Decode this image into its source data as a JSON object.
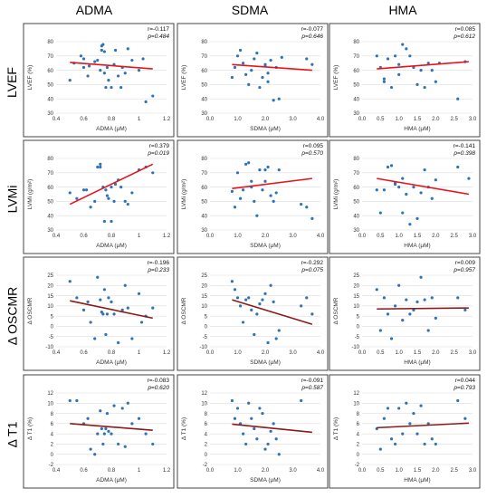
{
  "columns": [
    "ADMA",
    "SDMA",
    "HMA"
  ],
  "rows": [
    "LVEF",
    "LVMi",
    "Δ OSCMR",
    "Δ T1"
  ],
  "chart_data": [
    {
      "type": "scatter",
      "row": "LVEF",
      "col": "ADMA",
      "xlabel": "ADMA (μM)",
      "ylabel": "LVEF (%)",
      "xlim": [
        0.4,
        1.2
      ],
      "ylim": [
        30,
        80
      ],
      "xticks": [
        "0.4",
        "0.6",
        "0.8",
        "1",
        "1.2"
      ],
      "yticks": [
        "30",
        "40",
        "50",
        "60",
        "70",
        "80"
      ],
      "r_text": "r=-0.117",
      "p_text": "p=0.484",
      "trend": [
        [
          0.5,
          65.5
        ],
        [
          1.1,
          61
        ]
      ],
      "trend_color": "#e8141c",
      "x": [
        0.5,
        0.53,
        0.58,
        0.6,
        0.6,
        0.63,
        0.64,
        0.68,
        0.7,
        0.72,
        0.73,
        0.73,
        0.74,
        0.75,
        0.75,
        0.76,
        0.77,
        0.78,
        0.8,
        0.82,
        0.83,
        0.85,
        0.87,
        0.88,
        0.9,
        0.92,
        0.95,
        1.0,
        1.03,
        1.05,
        1.1
      ],
      "y": [
        53,
        65,
        70,
        68,
        62,
        56,
        63,
        66,
        67,
        60,
        74,
        77,
        78,
        73,
        58,
        48,
        62,
        53,
        48,
        64,
        74,
        56,
        48,
        62,
        58,
        75,
        67,
        60,
        68,
        38,
        42
      ]
    },
    {
      "type": "scatter",
      "row": "LVEF",
      "col": "SDMA",
      "xlabel": "SDMA (μM)",
      "ylabel": "LVEF (%)",
      "xlim": [
        0,
        4
      ],
      "ylim": [
        30,
        80
      ],
      "xticks": [
        "0.0",
        "1.0",
        "2.0",
        "3.0",
        "4.0"
      ],
      "yticks": [
        "30",
        "40",
        "50",
        "60",
        "70",
        "80"
      ],
      "r_text": "r=-0.077",
      "p_text": "p=0.646",
      "trend": [
        [
          0.8,
          64
        ],
        [
          3.7,
          60
        ]
      ],
      "trend_color": "#e8141c",
      "x": [
        0.8,
        0.9,
        1.0,
        1.1,
        1.2,
        1.3,
        1.4,
        1.5,
        1.6,
        1.7,
        1.8,
        1.9,
        2.0,
        2.0,
        2.1,
        2.1,
        2.2,
        2.3,
        2.4,
        2.5,
        2.6,
        3.5,
        3.7
      ],
      "y": [
        55,
        62,
        70,
        74,
        65,
        57,
        50,
        60,
        68,
        72,
        48,
        55,
        63,
        64,
        52,
        58,
        67,
        39,
        62,
        40,
        69,
        68,
        64
      ]
    },
    {
      "type": "scatter",
      "row": "LVEF",
      "col": "HMA",
      "xlabel": "HMA (μM)",
      "ylabel": "LVEF (%)",
      "xlim": [
        0,
        3
      ],
      "ylim": [
        30,
        80
      ],
      "xticks": [
        "0.0",
        "0.5",
        "1.0",
        "1.5",
        "2.0",
        "2.5",
        "3.0"
      ],
      "yticks": [
        "30",
        "40",
        "50",
        "60",
        "70",
        "80"
      ],
      "r_text": "r=0.085",
      "p_text": "p=0.612",
      "trend": [
        [
          0.4,
          61
        ],
        [
          2.9,
          66
        ]
      ],
      "trend_color": "#e8141c",
      "x": [
        0.4,
        0.5,
        0.6,
        0.6,
        0.7,
        0.8,
        0.9,
        1.0,
        1.0,
        1.1,
        1.2,
        1.3,
        1.4,
        1.5,
        1.6,
        1.7,
        1.8,
        1.9,
        2.0,
        2.1,
        2.6,
        2.8
      ],
      "y": [
        70,
        62,
        54,
        52,
        68,
        48,
        70,
        64,
        57,
        78,
        75,
        70,
        62,
        50,
        60,
        48,
        65,
        60,
        52,
        65,
        40,
        66
      ]
    },
    {
      "type": "scatter",
      "row": "LVMi",
      "col": "ADMA",
      "xlabel": "ADMA (μM)",
      "ylabel": "LVMi (g/m²)",
      "xlim": [
        0.4,
        1.2
      ],
      "ylim": [
        30,
        80
      ],
      "xticks": [
        "0.4",
        "0.6",
        "0.8",
        "1",
        "1.2"
      ],
      "yticks": [
        "30",
        "40",
        "50",
        "60",
        "70",
        "80"
      ],
      "r_text": "r=0.379",
      "p_text": "p=0.019",
      "trend": [
        [
          0.5,
          48
        ],
        [
          1.1,
          76
        ]
      ],
      "trend_color": "#e8141c",
      "x": [
        0.5,
        0.55,
        0.6,
        0.62,
        0.65,
        0.68,
        0.7,
        0.72,
        0.72,
        0.74,
        0.75,
        0.76,
        0.77,
        0.78,
        0.8,
        0.8,
        0.82,
        0.83,
        0.85,
        0.87,
        0.9,
        0.92,
        0.95,
        1.0,
        1.05,
        1.1
      ],
      "y": [
        56,
        52,
        58,
        58,
        46,
        50,
        74,
        76,
        74,
        60,
        36,
        58,
        54,
        52,
        36,
        60,
        50,
        62,
        65,
        60,
        50,
        48,
        56,
        72,
        74,
        70
      ]
    },
    {
      "type": "scatter",
      "row": "LVMi",
      "col": "SDMA",
      "xlabel": "SDMA (μM)",
      "ylabel": "LVMi (g/m²)",
      "xlim": [
        0,
        4
      ],
      "ylim": [
        30,
        80
      ],
      "xticks": [
        "0.0",
        "1.0",
        "2.0",
        "3.0",
        "4.0"
      ],
      "yticks": [
        "30",
        "40",
        "50",
        "60",
        "70",
        "80"
      ],
      "r_text": "r=0.095",
      "p_text": "p=0.570",
      "trend": [
        [
          0.8,
          59
        ],
        [
          3.7,
          66
        ]
      ],
      "trend_color": "#e8141c",
      "x": [
        0.8,
        0.9,
        1.0,
        1.1,
        1.2,
        1.3,
        1.4,
        1.5,
        1.5,
        1.6,
        1.7,
        1.8,
        1.9,
        2.0,
        2.0,
        2.1,
        2.2,
        2.3,
        2.4,
        2.5,
        3.3,
        3.5,
        3.7
      ],
      "y": [
        57,
        46,
        70,
        52,
        58,
        76,
        77,
        64,
        60,
        50,
        40,
        72,
        58,
        64,
        72,
        74,
        54,
        50,
        56,
        72,
        48,
        46,
        38
      ]
    },
    {
      "type": "scatter",
      "row": "LVMi",
      "col": "HMA",
      "xlabel": "HMA (μM)",
      "ylabel": "LVMi (g/m²)",
      "xlim": [
        0,
        3
      ],
      "ylim": [
        30,
        80
      ],
      "xticks": [
        "0.0",
        "0.5",
        "1.0",
        "1.5",
        "2.0",
        "2.5",
        "3.0"
      ],
      "yticks": [
        "30",
        "40",
        "50",
        "60",
        "70",
        "80"
      ],
      "r_text": "r=-0.141",
      "p_text": "p=0.398",
      "trend": [
        [
          0.4,
          66
        ],
        [
          2.9,
          55
        ]
      ],
      "trend_color": "#e8141c",
      "x": [
        0.4,
        0.5,
        0.6,
        0.7,
        0.8,
        0.9,
        0.9,
        1.0,
        1.1,
        1.1,
        1.2,
        1.3,
        1.4,
        1.5,
        1.6,
        1.7,
        1.8,
        1.9,
        2.0,
        2.6,
        2.9
      ],
      "y": [
        58,
        42,
        58,
        74,
        75,
        63,
        62,
        60,
        42,
        66,
        55,
        34,
        60,
        38,
        56,
        72,
        60,
        52,
        65,
        74,
        66
      ]
    },
    {
      "type": "scatter",
      "row": "Δ OSCMR",
      "col": "ADMA",
      "xlabel": "ADMA (μM)",
      "ylabel": "Δ OSCMR",
      "xlim": [
        0.4,
        1.2
      ],
      "ylim": [
        -10,
        25
      ],
      "xticks": [
        "0.4",
        "0.6",
        "0.8",
        "1",
        "1.2"
      ],
      "yticks": [
        "-10",
        "-5",
        "0",
        "5",
        "10",
        "15",
        "20",
        "25"
      ],
      "r_text": "r=-0.196",
      "p_text": "p=0.233",
      "trend": [
        [
          0.5,
          12.5
        ],
        [
          1.1,
          4
        ]
      ],
      "trend_color": "#8b1a1a",
      "x": [
        0.5,
        0.55,
        0.6,
        0.63,
        0.65,
        0.68,
        0.7,
        0.72,
        0.73,
        0.74,
        0.75,
        0.76,
        0.77,
        0.78,
        0.8,
        0.82,
        0.85,
        0.88,
        0.9,
        0.92,
        0.95,
        1.0,
        1.02,
        1.05,
        1.1
      ],
      "y": [
        22,
        14,
        8,
        12,
        2,
        -6,
        24,
        13,
        7,
        6,
        18,
        -4,
        6,
        14,
        12,
        6,
        -8,
        8,
        20,
        9,
        -6,
        16,
        2,
        5,
        9
      ]
    },
    {
      "type": "scatter",
      "row": "Δ OSCMR",
      "col": "SDMA",
      "xlabel": "SDMA (μM)",
      "ylabel": "Δ OSCMR",
      "xlim": [
        0,
        4
      ],
      "ylim": [
        -10,
        25
      ],
      "xticks": [
        "0.0",
        "1.0",
        "2.0",
        "3.0",
        "4.0"
      ],
      "yticks": [
        "-10",
        "-5",
        "0",
        "5",
        "10",
        "15",
        "20",
        "25"
      ],
      "r_text": "r=-0.292",
      "p_text": "p=0.075",
      "trend": [
        [
          0.8,
          13
        ],
        [
          3.7,
          1
        ]
      ],
      "trend_color": "#8b1a1a",
      "x": [
        0.8,
        0.9,
        1.0,
        1.1,
        1.2,
        1.3,
        1.4,
        1.5,
        1.6,
        1.7,
        1.8,
        1.9,
        2.0,
        2.1,
        2.2,
        2.3,
        2.4,
        2.5,
        3.3,
        3.5,
        3.7
      ],
      "y": [
        22,
        18,
        14,
        10,
        2,
        13,
        14,
        8,
        -4,
        6,
        11,
        13,
        16,
        -8,
        20,
        12,
        -6,
        -2,
        10,
        14,
        6
      ]
    },
    {
      "type": "scatter",
      "row": "Δ OSCMR",
      "col": "HMA",
      "xlabel": "HMA (μM)",
      "ylabel": "Δ OSCMR",
      "xlim": [
        0,
        3
      ],
      "ylim": [
        -10,
        25
      ],
      "xticks": [
        "0.0",
        "0.5",
        "1.0",
        "1.5",
        "2.0",
        "2.5",
        "3.0"
      ],
      "yticks": [
        "-10",
        "-5",
        "0",
        "5",
        "10",
        "15",
        "20",
        "25"
      ],
      "r_text": "r=0.009",
      "p_text": "p=0.957",
      "trend": [
        [
          0.4,
          8.5
        ],
        [
          2.9,
          9
        ]
      ],
      "trend_color": "#8b1a1a",
      "x": [
        0.4,
        0.5,
        0.6,
        0.7,
        0.8,
        0.9,
        1.0,
        1.1,
        1.2,
        1.3,
        1.4,
        1.5,
        1.6,
        1.7,
        1.8,
        1.9,
        2.0,
        2.6,
        2.8
      ],
      "y": [
        18,
        -2,
        14,
        6,
        -6,
        10,
        20,
        3,
        13,
        6,
        8,
        12,
        24,
        13,
        -2,
        14,
        4,
        14,
        8
      ]
    },
    {
      "type": "scatter",
      "row": "Δ T1",
      "col": "ADMA",
      "xlabel": "ADMA (μM)",
      "ylabel": "Δ T1 (%)",
      "xlim": [
        0.4,
        1.2
      ],
      "ylim": [
        -2,
        12
      ],
      "xticks": [
        "0.4",
        "0.6",
        "0.8",
        "1",
        "1.2"
      ],
      "yticks": [
        "-2",
        "0",
        "2",
        "4",
        "6",
        "8",
        "10",
        "12"
      ],
      "r_text": "r=-0.083",
      "p_text": "p=0.620",
      "trend": [
        [
          0.5,
          6
        ],
        [
          1.1,
          4.7
        ]
      ],
      "trend_color": "#8b1a1a",
      "x": [
        0.5,
        0.55,
        0.6,
        0.63,
        0.65,
        0.68,
        0.7,
        0.72,
        0.73,
        0.74,
        0.75,
        0.76,
        0.77,
        0.78,
        0.8,
        0.82,
        0.85,
        0.88,
        0.9,
        0.92,
        0.95,
        1.0,
        1.05,
        1.1
      ],
      "y": [
        10.5,
        10.5,
        6,
        7,
        1,
        0,
        4,
        8.5,
        5,
        2,
        4,
        5,
        8,
        4.5,
        4,
        9.5,
        2,
        9,
        1.5,
        10,
        6,
        7,
        4,
        2
      ]
    },
    {
      "type": "scatter",
      "row": "Δ T1",
      "col": "SDMA",
      "xlabel": "SDMA (μM)",
      "ylabel": "Δ T1 (%)",
      "xlim": [
        0,
        4
      ],
      "ylim": [
        -2,
        12
      ],
      "xticks": [
        "0.0",
        "1.0",
        "2.0",
        "3.0",
        "4.0"
      ],
      "yticks": [
        "-2",
        "0",
        "2",
        "4",
        "6",
        "8",
        "10",
        "12"
      ],
      "r_text": "r=-0.091",
      "p_text": "p=0.587",
      "trend": [
        [
          0.8,
          5.9
        ],
        [
          3.7,
          4.3
        ]
      ],
      "trend_color": "#8b1a1a",
      "x": [
        0.8,
        0.9,
        1.0,
        1.1,
        1.2,
        1.3,
        1.4,
        1.5,
        1.6,
        1.7,
        1.8,
        1.9,
        2.0,
        2.1,
        2.2,
        2.3,
        2.4,
        2.5,
        3.3
      ],
      "y": [
        10.5,
        7,
        9,
        6,
        4,
        2,
        10,
        7,
        5,
        3,
        9,
        8,
        1,
        2,
        4.5,
        6,
        3,
        0,
        10.5
      ]
    },
    {
      "type": "scatter",
      "row": "Δ T1",
      "col": "HMA",
      "xlabel": "HMA (μM)",
      "ylabel": "Δ T1 (%)",
      "xlim": [
        0,
        3
      ],
      "ylim": [
        -2,
        12
      ],
      "xticks": [
        "0.0",
        "0.5",
        "1.0",
        "1.5",
        "2.0",
        "2.5",
        "3.0"
      ],
      "yticks": [
        "-2",
        "0",
        "2",
        "4",
        "6",
        "8",
        "10",
        "12"
      ],
      "r_text": "r=0.044",
      "p_text": "p=0.793",
      "trend": [
        [
          0.4,
          5.2
        ],
        [
          2.9,
          6.1
        ]
      ],
      "trend_color": "#8b1a1a",
      "x": [
        0.4,
        0.5,
        0.6,
        0.7,
        0.8,
        0.9,
        1.0,
        1.1,
        1.2,
        1.3,
        1.4,
        1.5,
        1.6,
        1.7,
        1.8,
        1.9,
        2.0,
        2.6,
        2.8
      ],
      "y": [
        5,
        1,
        7,
        9,
        3,
        2,
        9,
        4,
        10,
        6,
        8,
        4,
        9.5,
        2,
        6,
        3,
        2,
        10.5,
        7
      ]
    }
  ]
}
